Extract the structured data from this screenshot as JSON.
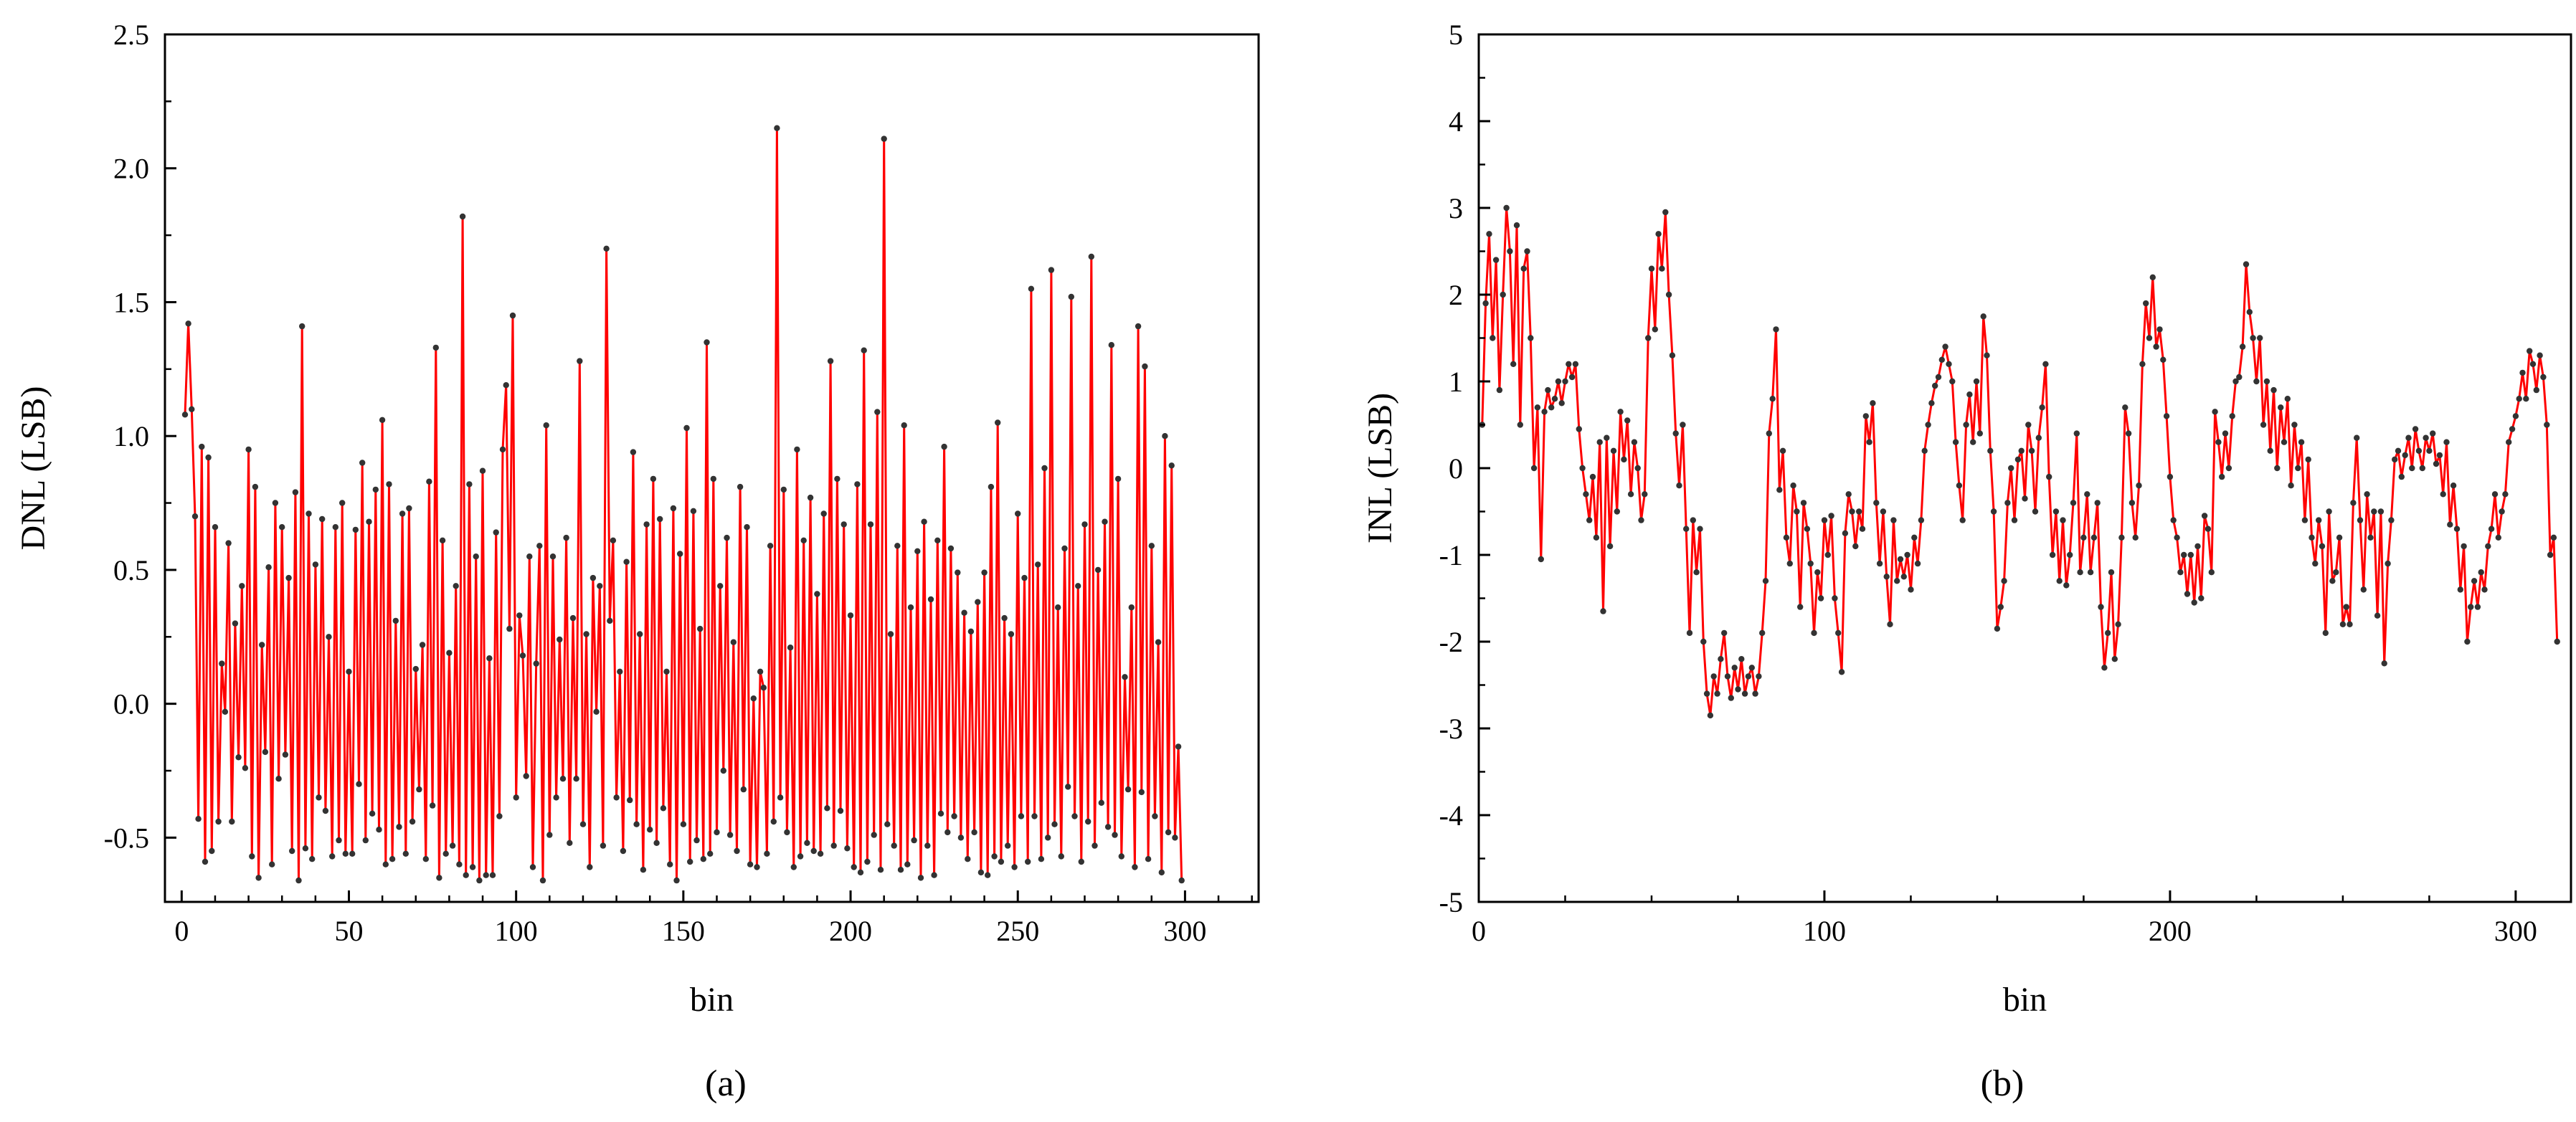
{
  "colors": {
    "line": "#ff0000",
    "marker": "#333333",
    "axis": "#000000"
  },
  "panel_labels": [
    "(a)",
    "(b)"
  ],
  "chart_data": [
    {
      "type": "line",
      "panel": "(a)",
      "title": "",
      "xlabel": "bin",
      "ylabel": "DNL (LSB)",
      "xlim": [
        -5,
        322
      ],
      "ylim": [
        -0.74,
        2.5
      ],
      "xticks": [
        0,
        50,
        100,
        150,
        200,
        250,
        300
      ],
      "xtick_labels": [
        "0",
        "50",
        "100",
        "150",
        "200",
        "250",
        "300"
      ],
      "yticks": [
        -0.5,
        0.0,
        0.5,
        1.0,
        1.5,
        2.0,
        2.5
      ],
      "ytick_labels": [
        "-0.5",
        "0.0",
        "0.5",
        "1.0",
        "1.5",
        "2.0",
        "2.5"
      ],
      "grid": false,
      "legend": "none",
      "series": [
        {
          "x_start": 1,
          "x_step": 1,
          "values": [
            1.08,
            1.42,
            1.1,
            0.7,
            -0.43,
            0.96,
            -0.59,
            0.92,
            -0.55,
            0.66,
            -0.44,
            0.15,
            -0.03,
            0.6,
            -0.44,
            0.3,
            -0.2,
            0.44,
            -0.24,
            0.95,
            -0.57,
            0.81,
            -0.65,
            0.22,
            -0.18,
            0.51,
            -0.6,
            0.75,
            -0.28,
            0.66,
            -0.19,
            0.47,
            -0.55,
            0.79,
            -0.66,
            1.41,
            -0.54,
            0.71,
            -0.58,
            0.52,
            -0.35,
            0.69,
            -0.4,
            0.25,
            -0.57,
            0.66,
            -0.51,
            0.75,
            -0.56,
            0.12,
            -0.56,
            0.65,
            -0.3,
            0.9,
            -0.51,
            0.68,
            -0.41,
            0.8,
            -0.47,
            1.06,
            -0.6,
            0.82,
            -0.58,
            0.31,
            -0.46,
            0.71,
            -0.56,
            0.73,
            -0.44,
            0.13,
            -0.32,
            0.22,
            -0.58,
            0.83,
            -0.38,
            1.33,
            -0.65,
            0.61,
            -0.56,
            0.19,
            -0.53,
            0.44,
            -0.6,
            1.82,
            -0.64,
            0.82,
            -0.61,
            0.55,
            -0.66,
            0.87,
            -0.64,
            0.17,
            -0.64,
            0.64,
            -0.42,
            0.95,
            1.19,
            0.28,
            1.45,
            -0.35,
            0.33,
            0.18,
            -0.27,
            0.55,
            -0.61,
            0.15,
            0.59,
            -0.66,
            1.04,
            -0.49,
            0.55,
            -0.35,
            0.24,
            -0.28,
            0.62,
            -0.52,
            0.32,
            -0.28,
            1.28,
            -0.45,
            0.26,
            -0.61,
            0.47,
            -0.03,
            0.44,
            -0.53,
            1.7,
            0.31,
            0.61,
            -0.35,
            0.12,
            -0.55,
            0.53,
            -0.36,
            0.94,
            -0.45,
            0.26,
            -0.62,
            0.67,
            -0.47,
            0.84,
            -0.52,
            0.69,
            -0.39,
            0.12,
            -0.6,
            0.73,
            -0.66,
            0.56,
            -0.45,
            1.03,
            -0.59,
            0.72,
            -0.51,
            0.28,
            -0.58,
            1.35,
            -0.56,
            0.84,
            -0.48,
            0.44,
            -0.25,
            0.62,
            -0.49,
            0.23,
            -0.55,
            0.81,
            -0.32,
            0.66,
            -0.6,
            0.02,
            -0.61,
            0.12,
            0.06,
            -0.56,
            0.59,
            -0.44,
            2.15,
            -0.35,
            0.8,
            -0.48,
            0.21,
            -0.61,
            0.95,
            -0.57,
            0.61,
            -0.52,
            0.77,
            -0.55,
            0.41,
            -0.56,
            0.71,
            -0.39,
            1.28,
            -0.53,
            0.84,
            -0.4,
            0.67,
            -0.54,
            0.33,
            -0.61,
            0.82,
            -0.63,
            1.32,
            -0.59,
            0.67,
            -0.49,
            1.09,
            -0.62,
            2.11,
            -0.45,
            0.26,
            -0.53,
            0.59,
            -0.62,
            1.04,
            -0.6,
            0.36,
            -0.51,
            0.57,
            -0.65,
            0.68,
            -0.53,
            0.39,
            -0.64,
            0.61,
            -0.41,
            0.96,
            -0.48,
            0.58,
            -0.42,
            0.49,
            -0.5,
            0.34,
            -0.58,
            0.27,
            -0.48,
            0.38,
            -0.63,
            0.49,
            -0.64,
            0.81,
            -0.57,
            1.05,
            -0.59,
            0.32,
            -0.53,
            0.26,
            -0.61,
            0.71,
            -0.42,
            0.47,
            -0.59,
            1.55,
            -0.42,
            0.52,
            -0.58,
            0.88,
            -0.5,
            1.62,
            -0.45,
            0.36,
            -0.57,
            0.58,
            -0.31,
            1.52,
            -0.42,
            0.44,
            -0.59,
            0.67,
            -0.44,
            1.67,
            -0.53,
            0.5,
            -0.37,
            0.68,
            -0.46,
            1.34,
            -0.49,
            0.84,
            -0.57,
            0.1,
            -0.32,
            0.36,
            -0.61,
            1.41,
            -0.33,
            1.26,
            -0.58,
            0.59,
            -0.42,
            0.23,
            -0.63,
            1.0,
            -0.48,
            0.89,
            -0.5,
            -0.16,
            -0.66
          ]
        }
      ]
    },
    {
      "type": "line",
      "panel": "(b)",
      "title": "",
      "xlabel": "bin",
      "ylabel": "INL (LSB)",
      "xlim": [
        0,
        316
      ],
      "ylim": [
        -5,
        5
      ],
      "xticks": [
        0,
        100,
        200,
        300
      ],
      "xtick_labels": [
        "0",
        "100",
        "200",
        "300"
      ],
      "yticks": [
        -5,
        -4,
        -3,
        -2,
        -1,
        0,
        1,
        2,
        3,
        4,
        5
      ],
      "ytick_labels": [
        "-5",
        "-4",
        "-3",
        "-2",
        "-1",
        "0",
        "1",
        "2",
        "3",
        "4",
        "5"
      ],
      "grid": false,
      "legend": "none",
      "series": [
        {
          "x_start": 1,
          "x_step": 1,
          "values": [
            0.5,
            1.9,
            2.7,
            1.5,
            2.4,
            0.9,
            2.0,
            3.0,
            2.5,
            1.2,
            2.8,
            0.5,
            2.3,
            2.5,
            1.5,
            0.0,
            0.7,
            -1.05,
            0.65,
            0.9,
            0.7,
            0.8,
            1.0,
            0.75,
            1.0,
            1.2,
            1.05,
            1.2,
            0.45,
            0.0,
            -0.3,
            -0.6,
            -0.1,
            -0.8,
            0.3,
            -1.65,
            0.35,
            -0.9,
            0.2,
            -0.5,
            0.65,
            0.1,
            0.55,
            -0.3,
            0.3,
            0.0,
            -0.6,
            -0.3,
            1.5,
            2.3,
            1.6,
            2.7,
            2.3,
            2.95,
            2.0,
            1.3,
            0.4,
            -0.2,
            0.5,
            -0.7,
            -1.9,
            -0.6,
            -1.2,
            -0.7,
            -2.0,
            -2.6,
            -2.85,
            -2.4,
            -2.6,
            -2.2,
            -1.9,
            -2.4,
            -2.65,
            -2.3,
            -2.55,
            -2.2,
            -2.6,
            -2.4,
            -2.3,
            -2.6,
            -2.4,
            -1.9,
            -1.3,
            0.4,
            0.8,
            1.6,
            -0.25,
            0.2,
            -0.8,
            -1.1,
            -0.2,
            -0.5,
            -1.6,
            -0.4,
            -0.7,
            -1.1,
            -1.9,
            -1.2,
            -1.5,
            -0.6,
            -1.0,
            -0.55,
            -1.5,
            -1.9,
            -2.35,
            -0.75,
            -0.3,
            -0.5,
            -0.9,
            -0.5,
            -0.7,
            0.6,
            0.3,
            0.75,
            -0.4,
            -1.1,
            -0.5,
            -1.25,
            -1.8,
            -0.6,
            -1.3,
            -1.05,
            -1.25,
            -1.0,
            -1.4,
            -0.8,
            -1.1,
            -0.6,
            0.2,
            0.5,
            0.75,
            0.95,
            1.05,
            1.25,
            1.4,
            1.2,
            1.0,
            0.3,
            -0.2,
            -0.6,
            0.5,
            0.85,
            0.3,
            1.0,
            0.4,
            1.75,
            1.3,
            0.2,
            -0.5,
            -1.85,
            -1.6,
            -1.3,
            -0.4,
            0.0,
            -0.6,
            0.1,
            0.2,
            -0.35,
            0.5,
            0.2,
            -0.5,
            0.35,
            0.7,
            1.2,
            -0.1,
            -1.0,
            -0.5,
            -1.3,
            -0.6,
            -1.35,
            -1.0,
            -0.4,
            0.4,
            -1.2,
            -0.8,
            -0.3,
            -1.2,
            -0.8,
            -0.4,
            -1.6,
            -2.3,
            -1.9,
            -1.2,
            -2.2,
            -1.8,
            -0.8,
            0.7,
            0.4,
            -0.4,
            -0.8,
            -0.2,
            1.2,
            1.9,
            1.5,
            2.2,
            1.4,
            1.6,
            1.25,
            0.6,
            -0.1,
            -0.6,
            -0.8,
            -1.2,
            -1.0,
            -1.45,
            -1.0,
            -1.55,
            -0.9,
            -1.5,
            -0.55,
            -0.7,
            -1.2,
            0.65,
            0.3,
            -0.1,
            0.4,
            0.0,
            0.6,
            1.0,
            1.05,
            1.4,
            2.35,
            1.8,
            1.5,
            1.0,
            1.5,
            0.5,
            1.0,
            0.2,
            0.9,
            0.0,
            0.7,
            0.3,
            0.8,
            -0.2,
            0.5,
            0.0,
            0.3,
            -0.6,
            0.1,
            -0.8,
            -1.1,
            -0.6,
            -0.9,
            -1.9,
            -0.5,
            -1.3,
            -1.2,
            -0.8,
            -1.8,
            -1.6,
            -1.8,
            -0.4,
            0.35,
            -0.6,
            -1.4,
            -0.3,
            -0.8,
            -0.5,
            -1.7,
            -0.5,
            -2.25,
            -1.1,
            -0.6,
            0.1,
            0.2,
            -0.1,
            0.15,
            0.35,
            0.0,
            0.45,
            0.2,
            0.0,
            0.35,
            0.2,
            0.4,
            0.05,
            0.15,
            -0.3,
            0.3,
            -0.65,
            -0.2,
            -0.7,
            -1.4,
            -0.9,
            -2.0,
            -1.6,
            -1.3,
            -1.6,
            -1.2,
            -1.4,
            -0.9,
            -0.7,
            -0.3,
            -0.8,
            -0.5,
            -0.3,
            0.3,
            0.45,
            0.6,
            0.8,
            1.1,
            0.8,
            1.35,
            1.2,
            0.9,
            1.3,
            1.05,
            0.5,
            -1.0,
            -0.8,
            -2.0
          ]
        }
      ]
    }
  ]
}
